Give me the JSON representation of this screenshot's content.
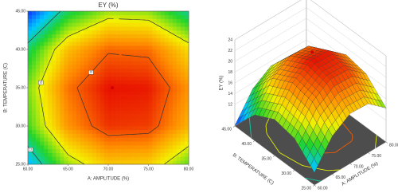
{
  "chart_data": [
    {
      "type": "contour",
      "title": "EY (%)",
      "xlabel": "A: AMPLITUDE (%)",
      "ylabel": "B: TEMPERATURE (C)",
      "xlim": [
        60,
        80
      ],
      "ylim": [
        25,
        45
      ],
      "xticks": [
        {
          "value": 60,
          "label": "60.00"
        },
        {
          "value": 65,
          "label": "65.00"
        },
        {
          "value": 70,
          "label": "70.00"
        },
        {
          "value": 75,
          "label": "75.00"
        },
        {
          "value": 80,
          "label": "80.00"
        }
      ],
      "yticks": [
        {
          "value": 25,
          "label": "25.00"
        },
        {
          "value": 30,
          "label": "30.00"
        },
        {
          "value": 35,
          "label": "35.00"
        },
        {
          "value": 40,
          "label": "40.00"
        },
        {
          "value": 45,
          "label": "45.00"
        }
      ],
      "x": [
        60,
        65,
        70,
        75,
        80
      ],
      "y": [
        25,
        30,
        35,
        40,
        45
      ],
      "z": [
        [
          10.3,
          15.1,
          17.3,
          17.1,
          14.3
        ],
        [
          13.9,
          18.7,
          20.9,
          20.7,
          17.9
        ],
        [
          14.7,
          19.5,
          21.7,
          21.5,
          18.7
        ],
        [
          12.8,
          17.6,
          19.8,
          19.6,
          16.8
        ],
        [
          8.1,
          12.9,
          15.1,
          14.9,
          12.1
        ]
      ],
      "contour_levels": [
        12,
        16,
        20
      ],
      "colorscale": [
        "#1030ff",
        "#00c8ff",
        "#22d42a",
        "#f4f000",
        "#ff8a00",
        "#e81000"
      ],
      "points": [
        {
          "x": 70.5,
          "y": 35
        }
      ],
      "point_color": "#d00000"
    },
    {
      "type": "surface3d",
      "xlabel": "A: AMPLITUDE (%)",
      "ylabel": "B: TEMPERATURE (C)",
      "zlabel": "EY (%)",
      "xlim": [
        60,
        80
      ],
      "ylim": [
        25,
        45
      ],
      "zlim": [
        8,
        24
      ],
      "xticks": [
        {
          "value": 60,
          "label": "60.00"
        },
        {
          "value": 65,
          "label": "65.00"
        },
        {
          "value": 70,
          "label": "70.00"
        },
        {
          "value": 75,
          "label": "75.00"
        },
        {
          "value": 80,
          "label": "80.00"
        }
      ],
      "yticks": [
        {
          "value": 25,
          "label": "25.00"
        },
        {
          "value": 30,
          "label": "30.00"
        },
        {
          "value": 35,
          "label": "35.00"
        },
        {
          "value": 40,
          "label": "40.00"
        },
        {
          "value": 45,
          "label": "45.00"
        }
      ],
      "zticks": [
        12,
        14,
        16,
        18,
        20,
        22,
        24
      ],
      "x": [
        60,
        65,
        70,
        75,
        80
      ],
      "y": [
        25,
        30,
        35,
        40,
        45
      ],
      "z": [
        [
          10.3,
          15.1,
          17.3,
          17.1,
          14.3
        ],
        [
          13.9,
          18.7,
          20.9,
          20.7,
          17.9
        ],
        [
          14.7,
          19.5,
          21.7,
          21.5,
          18.7
        ],
        [
          12.8,
          17.6,
          19.8,
          19.6,
          16.8
        ],
        [
          8.1,
          12.9,
          15.1,
          14.9,
          12.1
        ]
      ],
      "contour_levels": [
        12,
        16,
        20
      ],
      "colorscale": [
        "#1030ff",
        "#00c8ff",
        "#22d42a",
        "#f4f000",
        "#ff8a00",
        "#e81000"
      ],
      "points": [
        {
          "x": 70.5,
          "y": 35,
          "z": 23
        }
      ],
      "point_color": "#d00000"
    }
  ]
}
